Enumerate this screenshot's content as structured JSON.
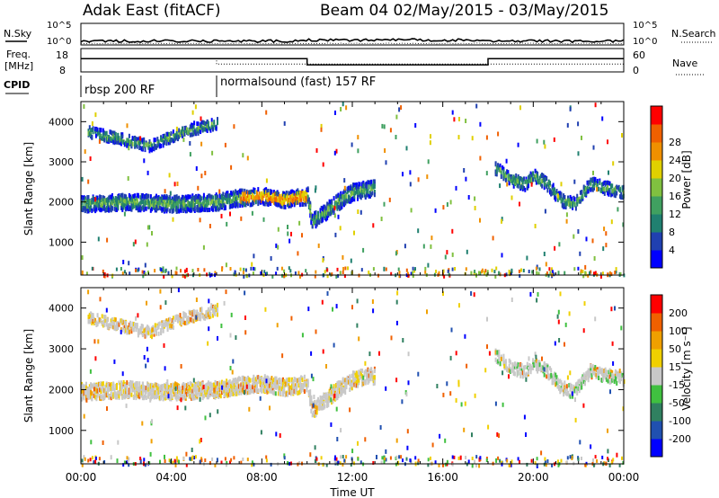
{
  "header": {
    "title": "Adak East (fitACF)",
    "beam_info": "Beam 04 02/May/2015 - 03/May/2015"
  },
  "top_panels": {
    "nsky_label": "N.Sky",
    "nsky_tick_top": "10^5",
    "nsky_tick_bottom": "10^0",
    "nsearch_label": "N.Search",
    "nsearch_tick_top": "10^5",
    "nsearch_tick_bottom": "10^0",
    "freq_label": "Freq.",
    "freq_unit": "[MHz]",
    "freq_tick_top": "18",
    "freq_tick_bottom": "8",
    "nave_label": "Nave",
    "nave_tick_top": "60",
    "nave_tick_bottom": "0",
    "cpid_label": "CPID",
    "cpid_segments": [
      {
        "label": "rbsp 200 RF",
        "start_hour": 0
      },
      {
        "label": "normalsound (fast) 157 RF",
        "start_hour": 6
      }
    ]
  },
  "axes": {
    "ylabel": "Slant Range [km]",
    "xlabel": "Time UT",
    "x_ticks": [
      "00:00",
      "04:00",
      "08:00",
      "12:00",
      "16:00",
      "20:00",
      "00:00"
    ],
    "y_ticks": [
      "1000",
      "2000",
      "3000",
      "4000"
    ]
  },
  "colorbars": {
    "power": {
      "label": "Power [dB]",
      "ticks": [
        "4",
        "8",
        "12",
        "16",
        "20",
        "24",
        "28"
      ],
      "colors": [
        "#0000ff",
        "#2040b0",
        "#208070",
        "#40a060",
        "#80c040",
        "#e0d000",
        "#f09000",
        "#f06000",
        "#ff0000"
      ]
    },
    "velocity": {
      "label": "Velocity [m s⁻¹]",
      "ticks": [
        "200",
        "100",
        "50",
        "15",
        "-15",
        "-50",
        "-100",
        "-200"
      ],
      "colors": [
        "#0000ff",
        "#2050b0",
        "#308060",
        "#40c040",
        "#c8c8c8",
        "#f0d000",
        "#f0a000",
        "#f06000",
        "#ff0000"
      ]
    }
  },
  "chart_data": [
    {
      "type": "line",
      "title": "N.Sky / N.Search",
      "x_range_hours": [
        0,
        24
      ],
      "ylim": [
        "10^0",
        "10^5"
      ],
      "log_scale": true,
      "series": [
        {
          "name": "N.Sky",
          "level_fraction": 0.18
        },
        {
          "name": "N.Search",
          "level_fraction": 0.05
        }
      ]
    },
    {
      "type": "line",
      "title": "Freq. / Nave",
      "x_range_hours": [
        0,
        24
      ],
      "ylim": [
        8,
        18
      ],
      "series": [
        {
          "name": "Freq.",
          "x": [
            0,
            10,
            10,
            18,
            18,
            24
          ],
          "y": [
            14,
            14,
            11,
            11,
            14,
            14
          ]
        },
        {
          "name": "Nave",
          "x": [
            0,
            6,
            6,
            24
          ],
          "y": [
            36,
            36,
            20,
            20
          ]
        }
      ]
    },
    {
      "type": "heatmap",
      "title": "Power",
      "x_range_hours": [
        0,
        24
      ],
      "ylim": [
        180,
        4500
      ],
      "bands": [
        {
          "x": [
            0,
            2,
            4,
            6,
            7,
            8,
            9,
            10,
            10.2,
            11,
            12,
            13
          ],
          "y": [
            2000,
            2050,
            2000,
            2050,
            2150,
            2200,
            2100,
            2200,
            1550,
            1900,
            2300,
            2400
          ]
        },
        {
          "x": [
            0.3,
            1.5,
            3,
            4.5,
            6
          ],
          "y": [
            3800,
            3650,
            3450,
            3800,
            4000
          ]
        },
        {
          "x": [
            18.3,
            19,
            19.6,
            20,
            20.6,
            21.2,
            21.8,
            22.5,
            23.2,
            24
          ],
          "y": [
            2900,
            2600,
            2500,
            2700,
            2500,
            2100,
            2000,
            2500,
            2400,
            2300
          ]
        }
      ]
    },
    {
      "type": "heatmap",
      "title": "Velocity",
      "x_range_hours": [
        0,
        24
      ],
      "ylim": [
        180,
        4500
      ],
      "bands": [
        {
          "x": [
            0,
            2,
            4,
            6,
            7,
            8,
            9,
            10,
            10.2,
            11,
            12,
            13
          ],
          "y": [
            2000,
            2050,
            2000,
            2050,
            2150,
            2200,
            2100,
            2200,
            1550,
            1900,
            2300,
            2400
          ]
        },
        {
          "x": [
            0.3,
            1.5,
            3,
            4.5,
            6
          ],
          "y": [
            3800,
            3650,
            3450,
            3800,
            4000
          ]
        },
        {
          "x": [
            18.3,
            19,
            19.6,
            20,
            20.6,
            21.2,
            21.8,
            22.5,
            23.2,
            24
          ],
          "y": [
            2900,
            2600,
            2500,
            2700,
            2500,
            2100,
            2000,
            2500,
            2400,
            2300
          ]
        }
      ]
    }
  ]
}
